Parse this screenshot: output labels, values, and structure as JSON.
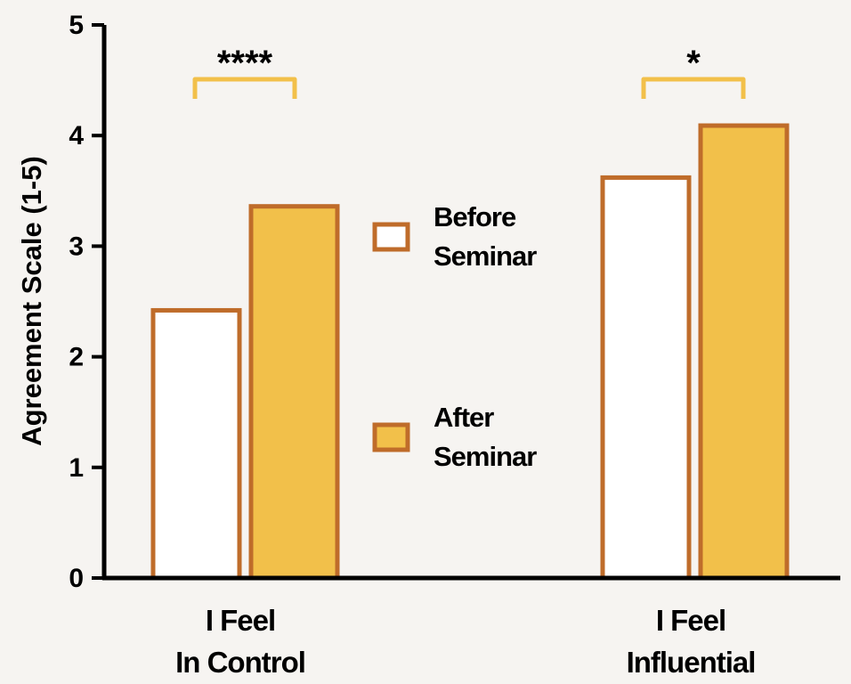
{
  "colors": {
    "background": "#f6f4f1",
    "bar_outline": "#bf6c2a",
    "before_fill": "#ffffff",
    "after_fill": "#f2c04a",
    "bracket": "#f2c04a",
    "axis": "#000000"
  },
  "chart_data": {
    "type": "bar",
    "ylabel": "Agreement Scale (1-5)",
    "xlabel": "",
    "ylim": [
      0,
      5
    ],
    "yticks": [
      "0",
      "1",
      "2",
      "3",
      "4",
      "5"
    ],
    "categories": [
      [
        "I Feel",
        "In Control"
      ],
      [
        "I Feel",
        "Influential"
      ]
    ],
    "series": [
      {
        "name": [
          "Before",
          "Seminar"
        ],
        "values": [
          2.42,
          3.62
        ],
        "color": "#ffffff"
      },
      {
        "name": [
          "After",
          "Seminar"
        ],
        "values": [
          3.36,
          4.09
        ],
        "color": "#f2c04a"
      }
    ],
    "significance": [
      "****",
      "*"
    ],
    "legend_position": "center",
    "grid": false
  }
}
